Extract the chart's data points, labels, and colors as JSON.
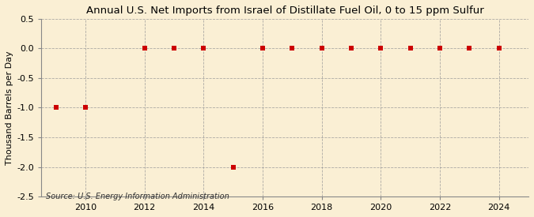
{
  "title": "Annual U.S. Net Imports from Israel of Distillate Fuel Oil, 0 to 15 ppm Sulfur",
  "ylabel": "Thousand Barrels per Day",
  "source": "Source: U.S. Energy Information Administration",
  "background_color": "#faefd4",
  "data_points_x": [
    2009,
    2010,
    2012,
    2013,
    2014,
    2015,
    2016,
    2017,
    2018,
    2019,
    2020,
    2021,
    2022,
    2023,
    2024
  ],
  "data_points_y": [
    -1.0,
    -1.0,
    0.0,
    0.0,
    0.0,
    -2.0,
    0.0,
    0.0,
    0.0,
    0.0,
    0.0,
    0.0,
    0.0,
    0.0,
    0.0
  ],
  "marker_color": "#cc0000",
  "marker_size": 18,
  "ylim": [
    -2.5,
    0.5
  ],
  "yticks": [
    0.5,
    0.0,
    -0.5,
    -1.0,
    -1.5,
    -2.0,
    -2.5
  ],
  "xlim": [
    2008.5,
    2025.0
  ],
  "xticks": [
    2010,
    2012,
    2014,
    2016,
    2018,
    2020,
    2022,
    2024
  ],
  "title_fontsize": 9.5,
  "label_fontsize": 8,
  "tick_fontsize": 8,
  "source_fontsize": 7,
  "grid_color": "#999999",
  "grid_style": "--",
  "grid_alpha": 0.8
}
